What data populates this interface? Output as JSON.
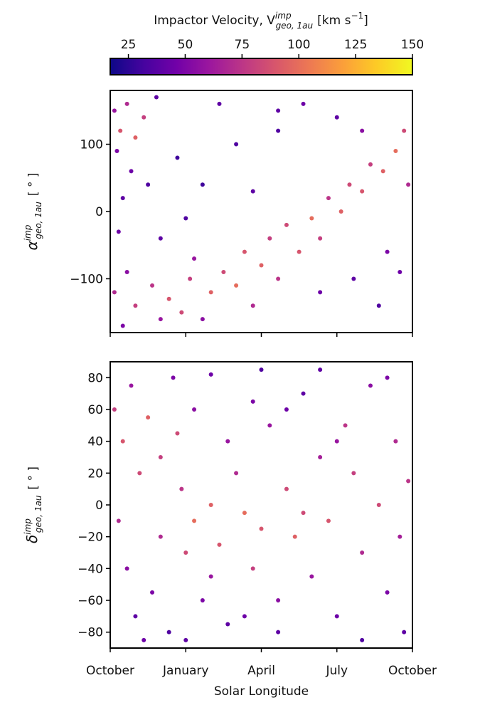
{
  "colorbar": {
    "label": {
      "main": "Impactor Velocity, V",
      "sup": "imp",
      "sub": "geo, 1au",
      "unit": "[km s",
      "unit_sup": "−1",
      "unit_end": "]"
    },
    "colormap": "plasma",
    "clim": [
      17,
      150
    ],
    "ticks": [
      25,
      50,
      75,
      100,
      125,
      150
    ]
  },
  "chart_data": [
    {
      "type": "scatter",
      "ylabel": {
        "symbol": "α",
        "sup": "imp",
        "sub": "geo, 1au",
        "unit": "[ ° ]"
      },
      "xlim": [
        0,
        360
      ],
      "ylim": [
        -180,
        180
      ],
      "xticks": [
        {
          "value": 0,
          "label": "October"
        },
        {
          "value": 90,
          "label": "January"
        },
        {
          "value": 180,
          "label": "April"
        },
        {
          "value": 270,
          "label": "July"
        },
        {
          "value": 360,
          "label": "October"
        }
      ],
      "yticks": [
        100,
        0,
        {
          "value": -100,
          "label": "−100"
        }
      ],
      "show_xtick_labels": false,
      "x": [
        5,
        12,
        20,
        30,
        8,
        40,
        55,
        25,
        15,
        45,
        10,
        5,
        20,
        30,
        50,
        60,
        70,
        85,
        95,
        100,
        110,
        120,
        135,
        150,
        160,
        170,
        180,
        190,
        200,
        210,
        225,
        240,
        250,
        260,
        275,
        285,
        300,
        310,
        325,
        340,
        350,
        355,
        300,
        270,
        230,
        200,
        130,
        80,
        110,
        150,
        170,
        90,
        60,
        250,
        290,
        320,
        345,
        330,
        200,
        15
      ],
      "y": [
        150,
        120,
        160,
        110,
        90,
        140,
        170,
        60,
        20,
        40,
        -30,
        -120,
        -90,
        -140,
        -110,
        -160,
        -130,
        -150,
        -100,
        -70,
        -160,
        -120,
        -90,
        -110,
        -60,
        -140,
        -80,
        -40,
        -100,
        -20,
        -60,
        -10,
        -40,
        20,
        0,
        40,
        30,
        70,
        60,
        90,
        120,
        40,
        120,
        140,
        160,
        120,
        160,
        80,
        40,
        100,
        30,
        -10,
        -40,
        -120,
        -100,
        -140,
        -90,
        -60,
        150,
        -170
      ],
      "velocity": [
        60,
        90,
        70,
        95,
        50,
        80,
        40,
        45,
        40,
        35,
        45,
        70,
        55,
        80,
        75,
        60,
        90,
        85,
        80,
        60,
        55,
        95,
        85,
        100,
        90,
        70,
        95,
        80,
        75,
        85,
        90,
        100,
        80,
        75,
        95,
        85,
        90,
        80,
        95,
        100,
        85,
        70,
        55,
        40,
        45,
        35,
        40,
        30,
        30,
        35,
        40,
        35,
        40,
        45,
        40,
        35,
        45,
        50,
        40,
        50
      ]
    },
    {
      "type": "scatter",
      "ylabel": {
        "symbol": "δ",
        "sup": "imp",
        "sub": "geo, 1au",
        "unit": "[ ° ]"
      },
      "xlabel": "Solar Longitude",
      "xlim": [
        0,
        360
      ],
      "ylim": [
        -90,
        90
      ],
      "xticks": [
        {
          "value": 0,
          "label": "October"
        },
        {
          "value": 90,
          "label": "January"
        },
        {
          "value": 180,
          "label": "April"
        },
        {
          "value": 270,
          "label": "July"
        },
        {
          "value": 360,
          "label": "October"
        }
      ],
      "yticks": [
        80,
        60,
        40,
        20,
        0,
        {
          "value": -20,
          "label": "−20"
        },
        {
          "value": -40,
          "label": "−40"
        },
        {
          "value": -60,
          "label": "−60"
        },
        {
          "value": -80,
          "label": "−80"
        }
      ],
      "show_xtick_labels": true,
      "x": [
        5,
        15,
        25,
        35,
        45,
        60,
        75,
        85,
        10,
        20,
        30,
        50,
        70,
        90,
        100,
        110,
        120,
        130,
        140,
        150,
        160,
        170,
        180,
        190,
        200,
        210,
        220,
        230,
        240,
        250,
        260,
        270,
        280,
        290,
        300,
        310,
        320,
        330,
        340,
        350,
        355,
        100,
        120,
        60,
        140,
        180,
        210,
        250,
        300,
        200,
        160,
        90,
        40,
        330,
        270,
        230,
        80,
        170,
        345,
        120
      ],
      "y": [
        60,
        40,
        75,
        20,
        55,
        30,
        80,
        10,
        -10,
        -40,
        -70,
        -55,
        -80,
        -30,
        -10,
        -60,
        0,
        -25,
        -75,
        20,
        -5,
        -40,
        -15,
        50,
        -60,
        10,
        -20,
        70,
        -45,
        30,
        -10,
        -70,
        50,
        20,
        -30,
        75,
        0,
        -55,
        40,
        -80,
        15,
        60,
        82,
        -20,
        40,
        85,
        60,
        85,
        -85,
        -80,
        -70,
        -85,
        -85,
        80,
        40,
        -5,
        45,
        65,
        -20,
        -45
      ],
      "velocity": [
        80,
        90,
        60,
        85,
        95,
        80,
        50,
        75,
        70,
        55,
        40,
        50,
        35,
        85,
        100,
        50,
        95,
        90,
        40,
        70,
        100,
        80,
        90,
        60,
        55,
        85,
        95,
        40,
        60,
        65,
        90,
        45,
        75,
        80,
        70,
        55,
        85,
        50,
        70,
        40,
        75,
        55,
        45,
        70,
        60,
        35,
        45,
        40,
        35,
        40,
        45,
        40,
        45,
        50,
        60,
        85,
        85,
        50,
        65,
        60
      ]
    }
  ]
}
